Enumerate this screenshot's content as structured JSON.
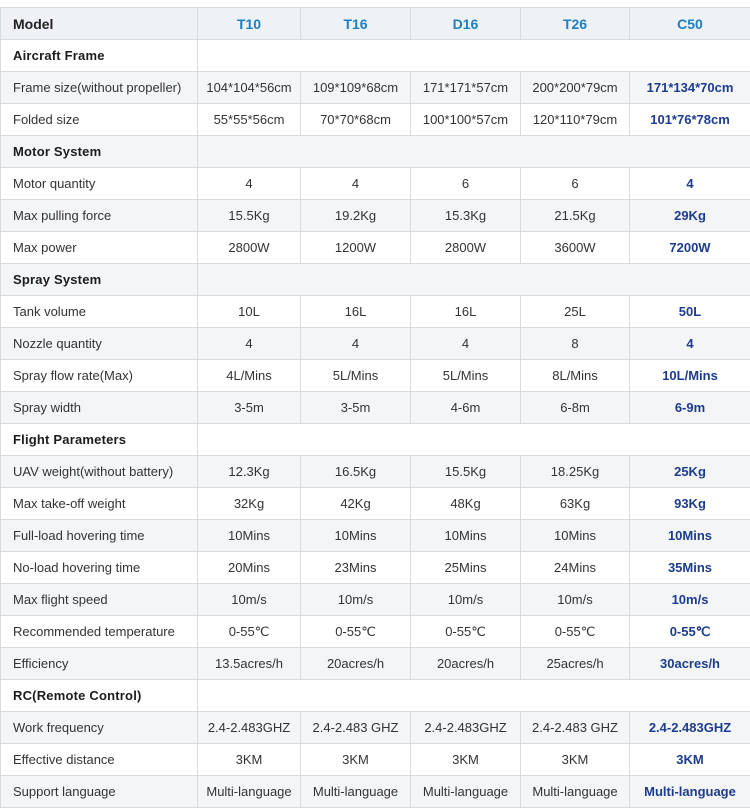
{
  "styles": {
    "model_header_blue": "#1e80c0",
    "c50_column_navy": "#1c3c8e",
    "stripe_gray": "#f4f5f7",
    "header_row_bg": "#eef1f5",
    "border_color": "#d8dce1"
  },
  "table": {
    "rows": [
      {
        "type": "header",
        "label": "Model",
        "values": [
          "T10",
          "T16",
          "D16",
          "T26",
          "C50"
        ]
      },
      {
        "type": "section",
        "label": "Aircraft Frame"
      },
      {
        "type": "data",
        "label": "Frame size(without propeller)",
        "values": [
          "104*104*56cm",
          "109*109*68cm",
          "171*171*57cm",
          "200*200*79cm",
          "171*134*70cm"
        ]
      },
      {
        "type": "data",
        "label": "Folded size",
        "values": [
          "55*55*56cm",
          "70*70*68cm",
          "100*100*57cm",
          "120*110*79cm",
          "101*76*78cm"
        ]
      },
      {
        "type": "section",
        "label": "Motor System"
      },
      {
        "type": "data",
        "label": "Motor quantity",
        "values": [
          "4",
          "4",
          "6",
          "6",
          "4"
        ]
      },
      {
        "type": "data",
        "label": "Max pulling force",
        "values": [
          "15.5Kg",
          "19.2Kg",
          "15.3Kg",
          "21.5Kg",
          "29Kg"
        ]
      },
      {
        "type": "data",
        "label": "Max power",
        "values": [
          "2800W",
          "1200W",
          "2800W",
          "3600W",
          "7200W"
        ]
      },
      {
        "type": "section",
        "label": "Spray System"
      },
      {
        "type": "data",
        "label": "Tank volume",
        "values": [
          "10L",
          "16L",
          "16L",
          "25L",
          "50L"
        ]
      },
      {
        "type": "data",
        "label": "Nozzle quantity",
        "values": [
          "4",
          "4",
          "4",
          "8",
          "4"
        ]
      },
      {
        "type": "data",
        "label": "Spray flow rate(Max)",
        "values": [
          "4L/Mins",
          "5L/Mins",
          "5L/Mins",
          "8L/Mins",
          "10L/Mins"
        ]
      },
      {
        "type": "data",
        "label": "Spray width",
        "values": [
          "3-5m",
          "3-5m",
          "4-6m",
          "6-8m",
          "6-9m"
        ]
      },
      {
        "type": "section",
        "label": "Flight Parameters"
      },
      {
        "type": "data",
        "label": "UAV weight(without battery)",
        "values": [
          "12.3Kg",
          "16.5Kg",
          "15.5Kg",
          "18.25Kg",
          "25Kg"
        ]
      },
      {
        "type": "data",
        "label": "Max take-off weight",
        "values": [
          "32Kg",
          "42Kg",
          "48Kg",
          "63Kg",
          "93Kg"
        ]
      },
      {
        "type": "data",
        "label": "Full-load hovering time",
        "values": [
          "10Mins",
          "10Mins",
          "10Mins",
          "10Mins",
          "10Mins"
        ]
      },
      {
        "type": "data",
        "label": "No-load hovering time",
        "values": [
          "20Mins",
          "23Mins",
          "25Mins",
          "24Mins",
          "35Mins"
        ]
      },
      {
        "type": "data",
        "label": "Max flight speed",
        "values": [
          "10m/s",
          "10m/s",
          "10m/s",
          "10m/s",
          "10m/s"
        ]
      },
      {
        "type": "data",
        "label": "Recommended temperature",
        "values": [
          "0-55℃",
          "0-55℃",
          "0-55℃",
          "0-55℃",
          "0-55℃"
        ]
      },
      {
        "type": "data",
        "label": "Efficiency",
        "values": [
          "13.5acres/h",
          "20acres/h",
          "20acres/h",
          "25acres/h",
          "30acres/h"
        ]
      },
      {
        "type": "section",
        "label": "RC(Remote Control)"
      },
      {
        "type": "data",
        "label": "Work frequency",
        "values": [
          "2.4-2.483GHZ",
          "2.4-2.483 GHZ",
          "2.4-2.483GHZ",
          "2.4-2.483 GHZ",
          "2.4-2.483GHZ"
        ]
      },
      {
        "type": "data",
        "label": "Effective distance",
        "values": [
          "3KM",
          "3KM",
          "3KM",
          "3KM",
          "3KM"
        ]
      },
      {
        "type": "data",
        "label": "Support language",
        "values": [
          "Multi-language",
          "Multi-language",
          "Multi-language",
          "Multi-language",
          "Multi-language"
        ]
      }
    ]
  }
}
